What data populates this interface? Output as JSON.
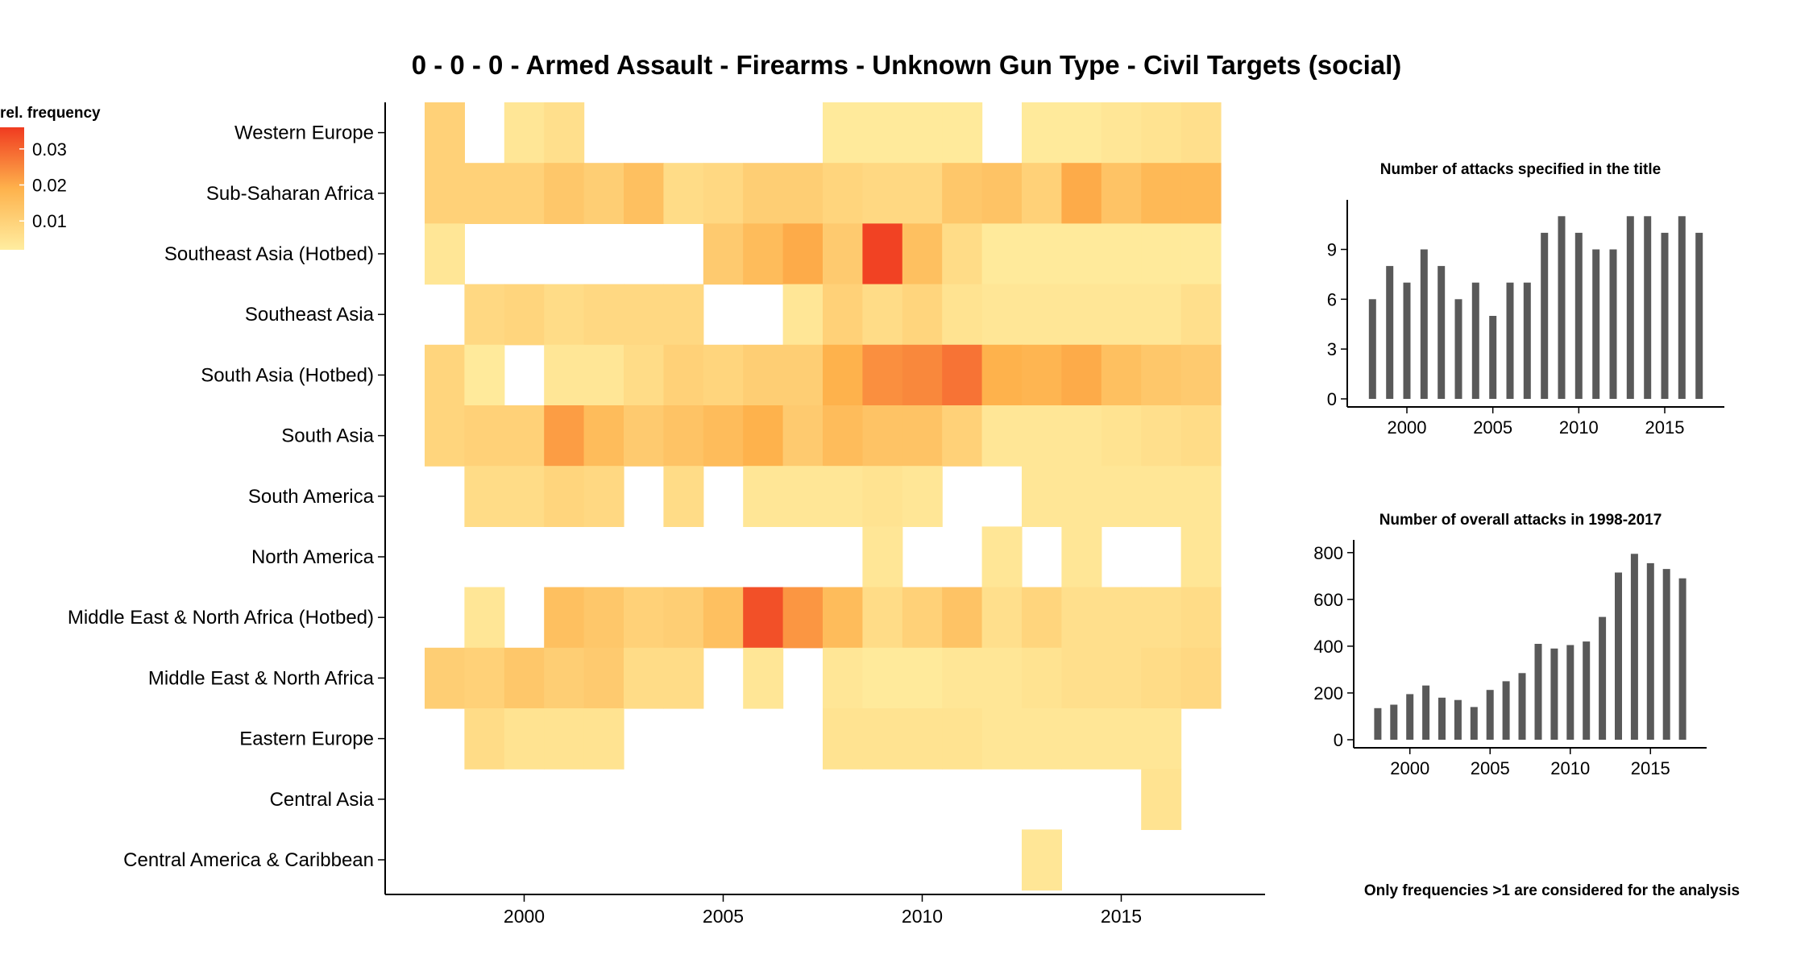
{
  "page": {
    "title": "0 - 0 - 0 - Armed Assault - Firearms - Unknown Gun Type - Civil Targets (social)",
    "footnote": "Only frequencies >1 are considered for the analysis"
  },
  "colors": {
    "low": "#ffeda0",
    "mid": "#feb24c",
    "high": "#f03b20",
    "bar": "#595959",
    "axis": "#000000"
  },
  "chart_data": [
    {
      "type": "heatmap",
      "title": "0 - 0 - 0 - Armed Assault - Firearms - Unknown Gun Type - Civil Targets (social)",
      "xlabel": "",
      "ylabel": "",
      "xlim": [
        1997.5,
        2017.5
      ],
      "x_ticks": [
        2000,
        2005,
        2010,
        2015
      ],
      "legend": {
        "title": "rel. frequency",
        "ticks": [
          0.01,
          0.02,
          0.03
        ],
        "range": [
          0.002,
          0.036
        ],
        "placement": "top-left"
      },
      "x": [
        1998,
        1999,
        2000,
        2001,
        2002,
        2003,
        2004,
        2005,
        2006,
        2007,
        2008,
        2009,
        2010,
        2011,
        2012,
        2013,
        2014,
        2015,
        2016,
        2017
      ],
      "rows": [
        {
          "label": "Western Europe",
          "values": [
            0.01,
            null,
            0.004,
            0.006,
            null,
            null,
            null,
            null,
            null,
            null,
            0.003,
            0.003,
            0.003,
            0.003,
            null,
            0.003,
            0.003,
            0.004,
            0.005,
            0.006
          ]
        },
        {
          "label": "Sub-Saharan Africa",
          "values": [
            0.01,
            0.01,
            0.01,
            0.013,
            0.011,
            0.015,
            0.007,
            0.008,
            0.011,
            0.011,
            0.009,
            0.008,
            0.008,
            0.013,
            0.014,
            0.01,
            0.02,
            0.014,
            0.017,
            0.017
          ]
        },
        {
          "label": "Southeast Asia (Hotbed)",
          "values": [
            0.004,
            null,
            null,
            null,
            null,
            null,
            null,
            0.012,
            0.016,
            0.02,
            0.012,
            0.035,
            0.015,
            0.007,
            0.003,
            0.003,
            0.003,
            0.003,
            0.003,
            0.003
          ]
        },
        {
          "label": "Southeast Asia",
          "values": [
            null,
            0.008,
            0.009,
            0.007,
            0.008,
            0.008,
            0.008,
            null,
            null,
            0.004,
            0.01,
            0.007,
            0.009,
            0.005,
            0.004,
            0.004,
            0.004,
            0.004,
            0.004,
            0.006
          ]
        },
        {
          "label": "South Asia (Hotbed)",
          "values": [
            0.009,
            0.003,
            null,
            0.004,
            0.004,
            0.007,
            0.01,
            0.009,
            0.011,
            0.011,
            0.019,
            0.024,
            0.025,
            0.028,
            0.019,
            0.018,
            0.02,
            0.015,
            0.013,
            0.012
          ]
        },
        {
          "label": "South Asia",
          "values": [
            0.009,
            0.01,
            0.01,
            0.022,
            0.016,
            0.012,
            0.014,
            0.016,
            0.019,
            0.012,
            0.016,
            0.014,
            0.014,
            0.01,
            0.004,
            0.004,
            0.004,
            0.005,
            0.006,
            0.007
          ]
        },
        {
          "label": "South America",
          "values": [
            null,
            0.007,
            0.007,
            0.009,
            0.008,
            null,
            0.007,
            null,
            0.004,
            0.004,
            0.004,
            0.005,
            0.004,
            null,
            null,
            0.004,
            0.004,
            0.004,
            0.004,
            0.004
          ]
        },
        {
          "label": "North America",
          "values": [
            null,
            null,
            null,
            null,
            null,
            null,
            null,
            null,
            null,
            null,
            null,
            0.004,
            null,
            null,
            0.004,
            null,
            0.004,
            null,
            null,
            0.004
          ]
        },
        {
          "label": "Middle East & North Africa (Hotbed)",
          "values": [
            null,
            0.004,
            null,
            0.015,
            0.013,
            0.01,
            0.011,
            0.015,
            0.033,
            0.023,
            0.016,
            0.007,
            0.01,
            0.014,
            0.006,
            0.009,
            0.006,
            0.006,
            0.006,
            0.007
          ]
        },
        {
          "label": "Middle East & North Africa",
          "values": [
            0.011,
            0.01,
            0.013,
            0.011,
            0.012,
            0.007,
            0.007,
            null,
            0.004,
            null,
            0.004,
            0.003,
            0.003,
            0.004,
            0.004,
            0.005,
            0.006,
            0.006,
            0.007,
            0.008
          ]
        },
        {
          "label": "Eastern Europe",
          "values": [
            null,
            0.007,
            0.005,
            0.005,
            0.005,
            null,
            null,
            null,
            null,
            null,
            0.005,
            0.005,
            0.005,
            0.005,
            0.004,
            0.004,
            0.004,
            0.004,
            0.004,
            null
          ]
        },
        {
          "label": "Central Asia",
          "values": [
            null,
            null,
            null,
            null,
            null,
            null,
            null,
            null,
            null,
            null,
            null,
            null,
            null,
            null,
            null,
            null,
            null,
            null,
            0.005,
            null
          ]
        },
        {
          "label": "Central America & Caribbean",
          "values": [
            null,
            null,
            null,
            null,
            null,
            null,
            null,
            null,
            null,
            null,
            null,
            null,
            null,
            null,
            null,
            0.004,
            null,
            null,
            null,
            null
          ]
        }
      ]
    },
    {
      "type": "bar",
      "title": "Number of attacks specified in the title",
      "xlabel": "",
      "ylabel": "",
      "xlim": [
        1997,
        2018
      ],
      "ylim": [
        0,
        11.5
      ],
      "x_ticks": [
        2000,
        2005,
        2010,
        2015
      ],
      "y_ticks": [
        0,
        3,
        6,
        9
      ],
      "x": [
        1998,
        1999,
        2000,
        2001,
        2002,
        2003,
        2004,
        2005,
        2006,
        2007,
        2008,
        2009,
        2010,
        2011,
        2012,
        2013,
        2014,
        2015,
        2016,
        2017
      ],
      "values": [
        6,
        8,
        7,
        9,
        8,
        6,
        7,
        5,
        7,
        7,
        10,
        11,
        10,
        9,
        9,
        11,
        11,
        10,
        11,
        10
      ]
    },
    {
      "type": "bar",
      "title": "Number of overall attacks in 1998-2017",
      "xlabel": "",
      "ylabel": "",
      "xlim": [
        1997,
        2018
      ],
      "ylim": [
        0,
        820
      ],
      "x_ticks": [
        2000,
        2005,
        2010,
        2015
      ],
      "y_ticks": [
        0,
        200,
        400,
        600,
        800
      ],
      "x": [
        1998,
        1999,
        2000,
        2001,
        2002,
        2003,
        2004,
        2005,
        2006,
        2007,
        2008,
        2009,
        2010,
        2011,
        2012,
        2013,
        2014,
        2015,
        2016,
        2017
      ],
      "values": [
        135,
        150,
        195,
        232,
        180,
        170,
        140,
        213,
        250,
        285,
        410,
        390,
        405,
        420,
        525,
        715,
        795,
        755,
        730,
        690
      ]
    }
  ]
}
